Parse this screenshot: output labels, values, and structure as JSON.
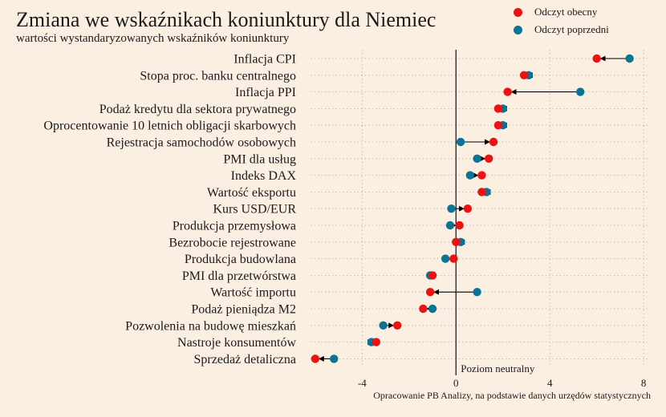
{
  "chart_data": {
    "type": "scatter",
    "title": "Zmiana we wskaźnikach koniunktury dla Niemiec",
    "subtitle": "wartości wystandaryzowanych wskaźników koniunktury",
    "source": "Opracowanie PB Analizy, na podstawie danych urzędów statystycznych",
    "neutral_label": "Poziom neutralny",
    "xlim": [
      -6.2,
      8.2
    ],
    "xticks": [
      -4,
      0,
      4,
      8
    ],
    "grid": true,
    "legend_position": "top-right",
    "colors": {
      "current": "#ee1111",
      "previous": "#0a7396",
      "background": "#fbefe2"
    },
    "categories": [
      "Inflacja CPI",
      "Stopa proc. banku centralnego",
      "Inflacja PPI",
      "Podaż kredytu dla sektora prywatnego",
      "Oprocentowanie 10 letnich obligacji skarbowych",
      "Rejestracja samochodów osobowych",
      "PMI dla usług",
      "Indeks DAX",
      "Wartość eksportu",
      "Kurs USD/EUR",
      "Produkcja przemysłowa",
      "Bezrobocie rejestrowane",
      "Produkcja budowlana",
      "PMI dla przetwórstwa",
      "Wartość importu",
      "Podaż pieniądza M2",
      "Pozwolenia na budowę mieszkań",
      "Nastroje konsumentów",
      "Sprzedaż detaliczna"
    ],
    "series": [
      {
        "name": "Odczyt obecny",
        "values": [
          6.0,
          2.9,
          2.2,
          1.8,
          1.8,
          1.6,
          1.4,
          1.1,
          1.1,
          0.5,
          0.15,
          0.0,
          -0.1,
          -1.0,
          -1.1,
          -1.4,
          -2.5,
          -3.4,
          -6.0
        ]
      },
      {
        "name": "Odczyt poprzedni",
        "values": [
          7.4,
          3.1,
          5.3,
          2.0,
          2.0,
          0.2,
          0.9,
          0.6,
          1.3,
          -0.2,
          -0.25,
          0.2,
          -0.45,
          -1.1,
          0.9,
          -1.0,
          -3.1,
          -3.6,
          -5.2
        ]
      }
    ]
  }
}
